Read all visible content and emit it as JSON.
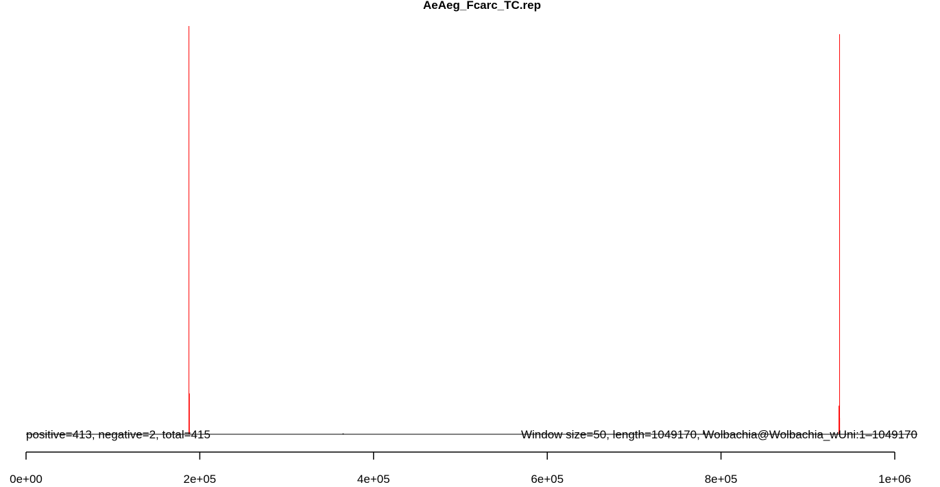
{
  "chart_data": {
    "type": "bar",
    "title": "AeAeg_Fcarc_TC.rep",
    "xlabel": "",
    "ylabel": "",
    "xlim": [
      0,
      1000000
    ],
    "x_ticks": [
      "0e+00",
      "2e+05",
      "4e+05",
      "6e+05",
      "8e+05",
      "1e+06"
    ],
    "x_tick_values": [
      0,
      200000,
      400000,
      600000,
      800000,
      1000000
    ],
    "annotation_left": "positive=413, negative=2, total=415",
    "annotation_right": "Window size=50, length=1049170, Wolbachia@Wolbachia_wUni:1–1049170",
    "grid": false,
    "legend": "none",
    "colors": {
      "positive": "#ff0000",
      "negative": "#000000",
      "baseline": "#000000"
    },
    "series": [
      {
        "name": "positive",
        "color": "#ff0000",
        "points": [
          {
            "x": 187500,
            "y": 1.0
          },
          {
            "x": 187800,
            "y": 0.1
          },
          {
            "x": 936500,
            "y": 0.98
          },
          {
            "x": 936000,
            "y": 0.07
          },
          {
            "x": 936300,
            "y": 0.04
          }
        ]
      },
      {
        "name": "negative",
        "color": "#000000",
        "points": [
          {
            "x": 365000,
            "y": 0.002
          },
          {
            "x": 780000,
            "y": 0.01
          }
        ]
      }
    ]
  }
}
